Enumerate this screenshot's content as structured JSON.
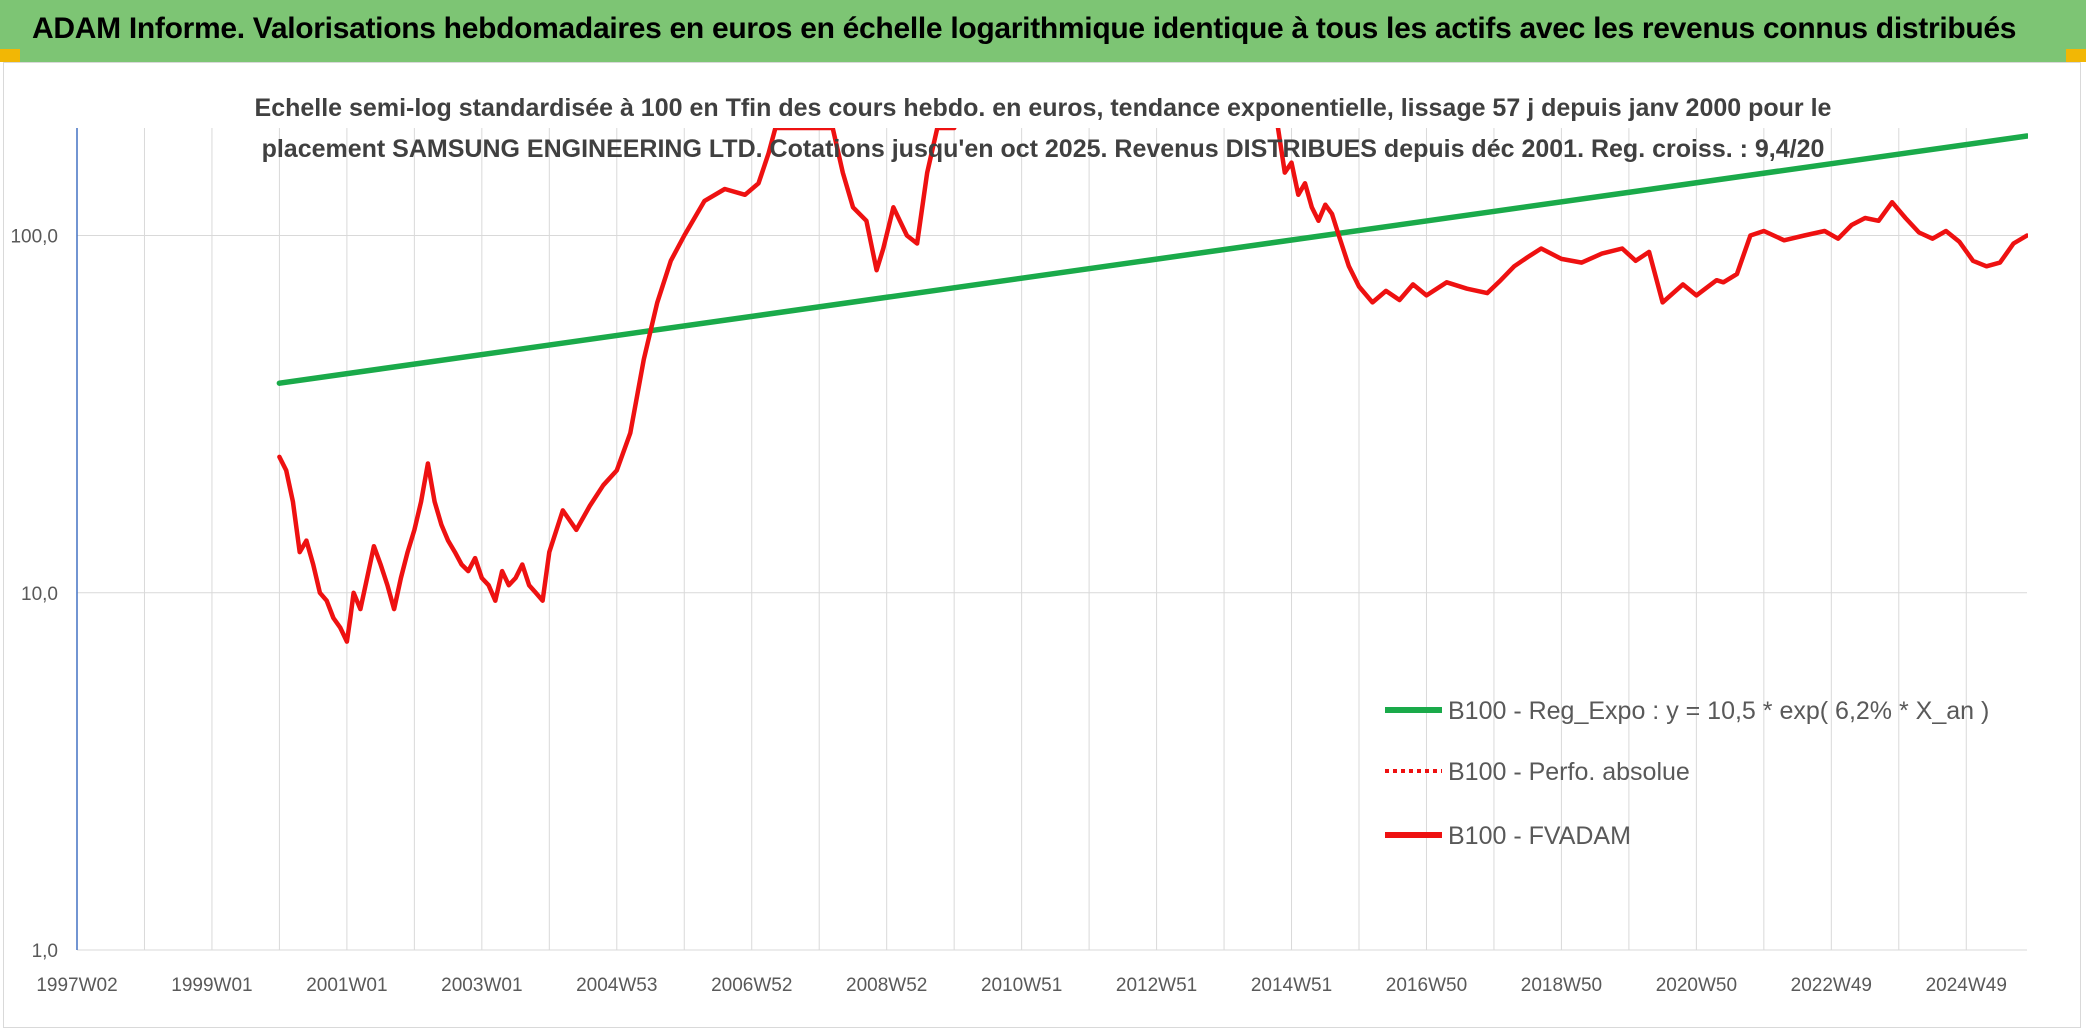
{
  "header": {
    "title": "ADAM Informe. Valorisations hebdomadaires en euros en échelle logarithmique identique à tous les actifs avec les revenus connus distribués"
  },
  "colors": {
    "banner": "#7dc574",
    "corner": "#f2b705",
    "regression": "#1aaa4a",
    "fvadam": "#ee1111",
    "perf": "#ee1111",
    "axis": "#4472c4",
    "grid": "#d9d9d9"
  },
  "chart_data": {
    "type": "line",
    "title_lines": [
      "Echelle semi-log standardisée à 100 en Tfin des cours hebdo. en euros, tendance exponentielle, lissage 57 j depuis janv 2000 pour le",
      "placement SAMSUNG ENGINEERING LTD. Cotations jusqu'en oct 2025. Revenus DISTRIBUES depuis déc 2001. Reg. croiss. : 9,4/20"
    ],
    "y_scale": "log",
    "ylim": [
      1,
      200
    ],
    "xlim": [
      1997.0,
      2025.9
    ],
    "y_ticks": [
      {
        "value": 100,
        "label": "100,0"
      },
      {
        "value": 10,
        "label": "10,0"
      },
      {
        "value": 1,
        "label": "1,0"
      }
    ],
    "x_ticks": [
      {
        "x": 1997.0,
        "label": "1997W02"
      },
      {
        "x": 1999.0,
        "label": "1999W01"
      },
      {
        "x": 2001.0,
        "label": "2001W01"
      },
      {
        "x": 2003.0,
        "label": "2003W01"
      },
      {
        "x": 2005.0,
        "label": "2004W53"
      },
      {
        "x": 2007.0,
        "label": "2006W52"
      },
      {
        "x": 2009.0,
        "label": "2008W52"
      },
      {
        "x": 2011.0,
        "label": "2010W51"
      },
      {
        "x": 2013.0,
        "label": "2012W51"
      },
      {
        "x": 2015.0,
        "label": "2014W51"
      },
      {
        "x": 2017.0,
        "label": "2016W50"
      },
      {
        "x": 2019.0,
        "label": "2018W50"
      },
      {
        "x": 2021.0,
        "label": "2020W50"
      },
      {
        "x": 2023.0,
        "label": "2022W49"
      },
      {
        "x": 2025.0,
        "label": "2024W49"
      }
    ],
    "grid": true,
    "legend_position": "bottom-right",
    "series": [
      {
        "name": "B100 - Reg_Expo : y = 10,5 * exp( 6,2% *  X_an )",
        "key": "regression",
        "style": "solid",
        "x": [
          2000.0,
          2025.9
        ],
        "y": [
          38.6,
          190
        ]
      },
      {
        "name": "B100 - Perfo. absolue",
        "key": "perf",
        "style": "dotted",
        "x": [],
        "y": []
      },
      {
        "name": "B100 - FVADAM",
        "key": "fvadam",
        "style": "solid",
        "x": [
          2000.0,
          2000.1,
          2000.2,
          2000.3,
          2000.4,
          2000.5,
          2000.6,
          2000.7,
          2000.8,
          2000.9,
          2001.0,
          2001.05,
          2001.1,
          2001.2,
          2001.3,
          2001.4,
          2001.5,
          2001.6,
          2001.7,
          2001.8,
          2001.9,
          2002.0,
          2002.1,
          2002.2,
          2002.3,
          2002.4,
          2002.5,
          2002.6,
          2002.7,
          2002.8,
          2002.9,
          2003.0,
          2003.1,
          2003.2,
          2003.3,
          2003.4,
          2003.5,
          2003.6,
          2003.7,
          2003.8,
          2003.9,
          2004.0,
          2004.2,
          2004.4,
          2004.6,
          2004.8,
          2005.0,
          2005.2,
          2005.4,
          2005.6,
          2005.8,
          2006.0,
          2006.3,
          2006.6,
          2006.9,
          2007.1,
          2007.25,
          2007.35,
          2007.5,
          2007.9,
          2008.2,
          2008.35,
          2008.5,
          2008.7,
          2008.85,
          2008.95,
          2009.1,
          2009.3,
          2009.45,
          2009.6,
          2009.75,
          2009.85,
          2010.0,
          2014.8,
          2014.9,
          2015.0,
          2015.1,
          2015.2,
          2015.3,
          2015.4,
          2015.5,
          2015.6,
          2015.7,
          2015.85,
          2016.0,
          2016.2,
          2016.4,
          2016.6,
          2016.8,
          2017.0,
          2017.3,
          2017.6,
          2017.9,
          2018.1,
          2018.3,
          2018.5,
          2018.7,
          2019.0,
          2019.3,
          2019.6,
          2019.9,
          2020.1,
          2020.3,
          2020.5,
          2020.8,
          2021.0,
          2021.3,
          2021.4,
          2021.6,
          2021.8,
          2022.0,
          2022.3,
          2022.6,
          2022.9,
          2023.1,
          2023.3,
          2023.5,
          2023.7,
          2023.9,
          2024.1,
          2024.3,
          2024.5,
          2024.7,
          2024.9,
          2025.1,
          2025.3,
          2025.5,
          2025.7,
          2025.9
        ],
        "y": [
          24,
          22,
          18,
          13,
          14,
          12,
          10,
          9.5,
          8.5,
          8.0,
          7.3,
          8.5,
          10.0,
          9.0,
          11.0,
          13.5,
          12.0,
          10.5,
          9.0,
          11.0,
          13.0,
          15.0,
          18.0,
          23.0,
          18.0,
          15.5,
          14.0,
          13.0,
          12.0,
          11.5,
          12.5,
          11.0,
          10.5,
          9.5,
          11.5,
          10.5,
          11.0,
          12.0,
          10.5,
          10.0,
          9.5,
          13.0,
          17.0,
          15.0,
          17.5,
          20.0,
          22.0,
          28.0,
          45.0,
          65.0,
          85.0,
          100.0,
          125.0,
          135.0,
          130.0,
          140.0,
          170.0,
          200.0,
          200.0,
          200.0,
          200.0,
          150.0,
          120.0,
          110.0,
          80.0,
          92.0,
          120.0,
          100.0,
          95.0,
          150.0,
          200.0,
          200.0,
          200.0,
          200.0,
          150.0,
          160.0,
          130.0,
          140.0,
          120.0,
          110.0,
          122.0,
          115.0,
          100.0,
          82.0,
          72.0,
          65.0,
          70.0,
          66.0,
          73.0,
          68.0,
          74.0,
          71.0,
          69.0,
          75.0,
          82.0,
          87.0,
          92.0,
          86.0,
          84.0,
          89.0,
          92.0,
          85.0,
          90.0,
          65.0,
          73.0,
          68.0,
          75.0,
          74.0,
          78.0,
          100.0,
          103.0,
          97.0,
          100.0,
          103.0,
          98.0,
          107.0,
          112.0,
          110.0,
          124.0,
          112.0,
          102.0,
          98.0,
          103.0,
          96.0,
          85.0,
          82.0,
          84.0,
          95.0,
          100.0
        ]
      }
    ]
  }
}
